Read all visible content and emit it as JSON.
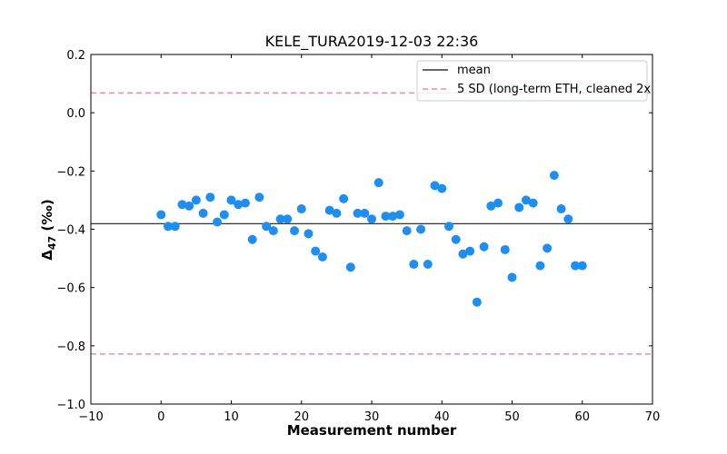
{
  "chart_data": {
    "type": "scatter",
    "title": "KELE_TURA2019-12-03 22:36",
    "xlabel": "Measurement number",
    "ylabel": "Δ47 (‰)",
    "ylabel_main": "Δ",
    "ylabel_sub": "47",
    "ylabel_unit": " (‰)",
    "xlim": [
      -10,
      70
    ],
    "ylim": [
      -1.0,
      0.2
    ],
    "xticks": [
      -10,
      0,
      10,
      20,
      30,
      40,
      50,
      60,
      70
    ],
    "yticks": [
      -1.0,
      -0.8,
      -0.6,
      -0.4,
      -0.2,
      0.0,
      0.2
    ],
    "xtick_labels": [
      "−10",
      "0",
      "10",
      "20",
      "30",
      "40",
      "50",
      "60",
      "70"
    ],
    "ytick_labels": [
      "−1.0",
      "−0.8",
      "−0.6",
      "−0.4",
      "−0.2",
      "0.0",
      "0.2"
    ],
    "grid": false,
    "legend_position": "top-right",
    "colors": {
      "points": "#1f8ef1",
      "mean": "#333333",
      "sd": "#e8909c"
    },
    "mean": -0.381,
    "sd_bounds": [
      0.068,
      -0.828
    ],
    "legend": [
      {
        "label": "mean",
        "style": "solid"
      },
      {
        "label": "5 SD (long-term ETH, cleaned 2x",
        "style": "dashed"
      }
    ],
    "series": [
      {
        "x": [
          0,
          1,
          2,
          3,
          4,
          5,
          6,
          7,
          8,
          9,
          10,
          11,
          12,
          13,
          14,
          15,
          16,
          17,
          18,
          19,
          20,
          21,
          22,
          23,
          24,
          25,
          26,
          27,
          28,
          29,
          30,
          31,
          32,
          33,
          34,
          35,
          36,
          37,
          38,
          39,
          40,
          41,
          42,
          43,
          44,
          45,
          46,
          47,
          48,
          49,
          50,
          51,
          52,
          53,
          54,
          55,
          56,
          57,
          58,
          59,
          60
        ],
        "y": [
          -0.35,
          -0.39,
          -0.39,
          -0.315,
          -0.32,
          -0.3,
          -0.345,
          -0.29,
          -0.375,
          -0.35,
          -0.3,
          -0.315,
          -0.31,
          -0.435,
          -0.29,
          -0.39,
          -0.405,
          -0.365,
          -0.365,
          -0.405,
          -0.33,
          -0.415,
          -0.475,
          -0.495,
          -0.335,
          -0.345,
          -0.295,
          -0.53,
          -0.345,
          -0.345,
          -0.365,
          -0.24,
          -0.355,
          -0.355,
          -0.35,
          -0.405,
          -0.52,
          -0.4,
          -0.52,
          -0.25,
          -0.26,
          -0.39,
          -0.435,
          -0.485,
          -0.475,
          -0.65,
          -0.46,
          -0.32,
          -0.31,
          -0.47,
          -0.565,
          -0.325,
          -0.3,
          -0.31,
          -0.525,
          -0.465,
          -0.215,
          -0.33,
          -0.365,
          -0.525,
          -0.525
        ]
      }
    ]
  }
}
